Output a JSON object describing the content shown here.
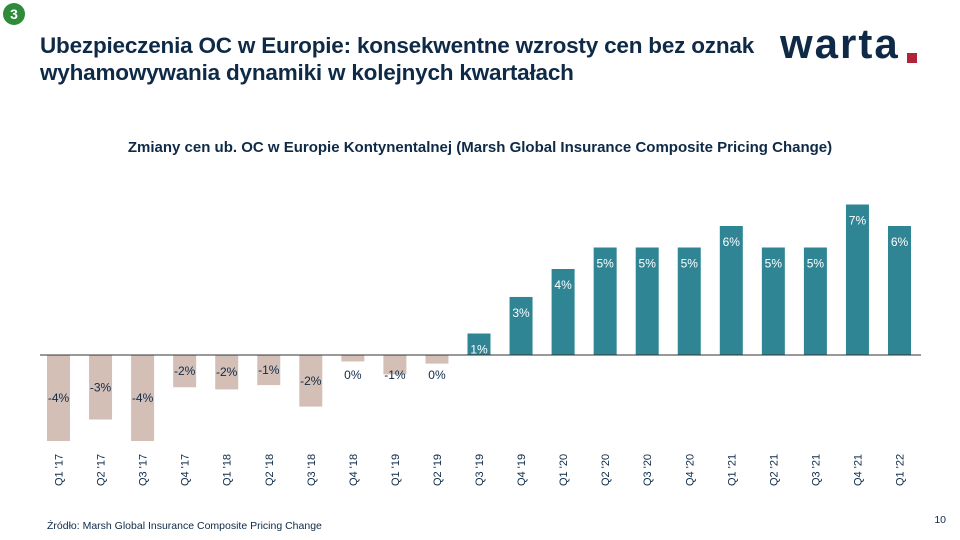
{
  "slide": {
    "badge": "3",
    "title": "Ubezpieczenia OC w Europie: konsekwentne wzrosty cen bez oznak wyhamowywania dynamiki w kolejnych kwartałach",
    "logo_text": "warta",
    "source": "Źródło: Marsh Global Insurance Composite Pricing Change",
    "page_number": "10"
  },
  "colors": {
    "positive_bar": "#2f8594",
    "negative_bar": "#d3bfb6",
    "positive_label": "#ffffff",
    "negative_label": "#0e2a47",
    "title": "#0e2a47",
    "logo_dot": "#b0243a",
    "badge": "#2e8b3a"
  },
  "chart_data": {
    "type": "bar",
    "title": "Zmiany cen ub. OC w Europie Kontynentalnej  (Marsh Global Insurance Composite Pricing Change)",
    "categories": [
      "Q1 '17",
      "Q2 '17",
      "Q3 '17",
      "Q4 '17",
      "Q1 '18",
      "Q2 '18",
      "Q3 '18",
      "Q4 '18",
      "Q1 '19",
      "Q2 '19",
      "Q3 '19",
      "Q4 '19",
      "Q1 '20",
      "Q2 '20",
      "Q3 '20",
      "Q4 '20",
      "Q1 '21",
      "Q2 '21",
      "Q3 '21",
      "Q4 '21",
      "Q1 '22"
    ],
    "values": [
      -4,
      -3,
      -4,
      -1.5,
      -1.6,
      -1.4,
      -2.4,
      -0.3,
      -0.9,
      -0.4,
      1,
      2.7,
      4,
      5,
      5,
      5,
      6,
      5,
      5,
      7,
      6
    ],
    "data_labels": [
      "-4%",
      "-3%",
      "-4%",
      "-2%",
      "-2%",
      "-1%",
      "-2%",
      "0%",
      "-1%",
      "0%",
      "1%",
      "3%",
      "4%",
      "5%",
      "5%",
      "5%",
      "6%",
      "5%",
      "5%",
      "7%",
      "6%"
    ],
    "ylim": [
      -4.5,
      7.5
    ],
    "xlabel": "",
    "ylabel": "",
    "grid": false,
    "legend": "none"
  }
}
